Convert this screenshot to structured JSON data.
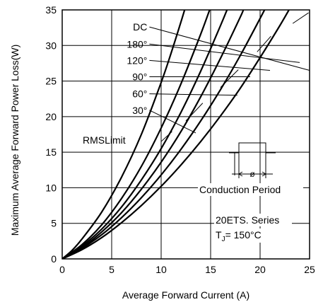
{
  "chart_data": {
    "type": "line",
    "xlabel": "Average Forward Current (A)",
    "ylabel": "Maximum Average Forward Power Loss(W)",
    "xlim": [
      0,
      25
    ],
    "ylim": [
      0,
      35
    ],
    "x_ticks": [
      "0",
      "5",
      "10",
      "15",
      "20",
      "25"
    ],
    "y_ticks": [
      "0",
      "5",
      "10",
      "15",
      "20",
      "25",
      "30",
      "35"
    ],
    "grid": true,
    "series": [
      {
        "name": "DC",
        "label": "DC",
        "points": [
          [
            0,
            0
          ],
          [
            2,
            1.3
          ],
          [
            4,
            3.0
          ],
          [
            6,
            5.1
          ],
          [
            8,
            7.5
          ],
          [
            10,
            10.2
          ],
          [
            12,
            13.2
          ],
          [
            14,
            16.5
          ],
          [
            16,
            20.1
          ],
          [
            18,
            24.0
          ],
          [
            20,
            28.3
          ],
          [
            22,
            32.8
          ],
          [
            23,
            35.2
          ]
        ]
      },
      {
        "name": "180°",
        "label": "180°",
        "points": [
          [
            0,
            0
          ],
          [
            2,
            1.5
          ],
          [
            4,
            3.4
          ],
          [
            6,
            5.8
          ],
          [
            8,
            8.6
          ],
          [
            10,
            11.8
          ],
          [
            12,
            15.4
          ],
          [
            14,
            19.4
          ],
          [
            16,
            23.8
          ],
          [
            18,
            28.6
          ],
          [
            20,
            33.8
          ],
          [
            21,
            36.5
          ]
        ]
      },
      {
        "name": "120°",
        "label": "120°",
        "points": [
          [
            0,
            0
          ],
          [
            2,
            1.6
          ],
          [
            4,
            3.8
          ],
          [
            6,
            6.5
          ],
          [
            8,
            9.8
          ],
          [
            10,
            13.6
          ],
          [
            12,
            17.9
          ],
          [
            14,
            22.8
          ],
          [
            16,
            28.2
          ],
          [
            18,
            34.0
          ],
          [
            18.3,
            35
          ]
        ]
      },
      {
        "name": "90°",
        "label": "90°",
        "points": [
          [
            0,
            0
          ],
          [
            2,
            1.8
          ],
          [
            4,
            4.2
          ],
          [
            6,
            7.3
          ],
          [
            8,
            11.1
          ],
          [
            10,
            15.5
          ],
          [
            12,
            20.6
          ],
          [
            14,
            26.4
          ],
          [
            16,
            32.8
          ],
          [
            16.8,
            35.5
          ]
        ]
      },
      {
        "name": "60°",
        "label": "60°",
        "points": [
          [
            0,
            0
          ],
          [
            2,
            2.0
          ],
          [
            4,
            4.8
          ],
          [
            6,
            8.5
          ],
          [
            8,
            13.0
          ],
          [
            10,
            18.4
          ],
          [
            12,
            24.6
          ],
          [
            14,
            31.6
          ],
          [
            15,
            35.4
          ]
        ]
      },
      {
        "name": "30°",
        "label": "30°",
        "points": [
          [
            0,
            0
          ],
          [
            1,
            1.2
          ],
          [
            2,
            2.8
          ],
          [
            4,
            6.6
          ],
          [
            6,
            11.5
          ],
          [
            8,
            17.5
          ],
          [
            10,
            24.8
          ],
          [
            11,
            28.9
          ],
          [
            12,
            33.3
          ],
          [
            12.5,
            35.6
          ]
        ]
      }
    ],
    "series_labels": [
      {
        "text": "DC",
        "lx": 8.6,
        "ly": 32.6,
        "tx": 25,
        "ty": 26.5
      },
      {
        "text": "180°",
        "lx": 8.6,
        "ly": 30.2,
        "tx": 24,
        "ty": 27.6
      },
      {
        "text": "120°",
        "lx": 8.6,
        "ly": 27.9,
        "tx": 21,
        "ty": 26.5
      },
      {
        "text": "90°",
        "lx": 8.6,
        "ly": 25.6,
        "tx": 19,
        "ty": 25.6
      },
      {
        "text": "60°",
        "lx": 8.6,
        "ly": 23.2,
        "tx": 17.7,
        "ty": 23.0
      },
      {
        "text": "30°",
        "lx": 8.6,
        "ly": 20.9,
        "tx": 13.5,
        "ty": 17.7
      }
    ],
    "rms_limit": {
      "label": "RMSLimit",
      "segments": [
        [
          [
            10,
            16.5
          ],
          [
            11.1,
            17.9
          ]
        ],
        [
          [
            12.5,
            19.4
          ],
          [
            14.2,
            21.9
          ]
        ],
        [
          [
            16,
            24.1
          ],
          [
            17.8,
            26.6
          ]
        ],
        [
          [
            19.7,
            29.1
          ],
          [
            21.1,
            31.3
          ]
        ],
        [
          [
            23.3,
            33.1
          ],
          [
            24.9,
            34.6
          ]
        ]
      ]
    },
    "annotations": {
      "conduction_period": "Conduction Period",
      "phi_symbol": "ø",
      "series_name": "20ETS. Series",
      "tj_prefix": "T",
      "tj_subscript": "J",
      "tj_value": "= 150°C"
    }
  }
}
